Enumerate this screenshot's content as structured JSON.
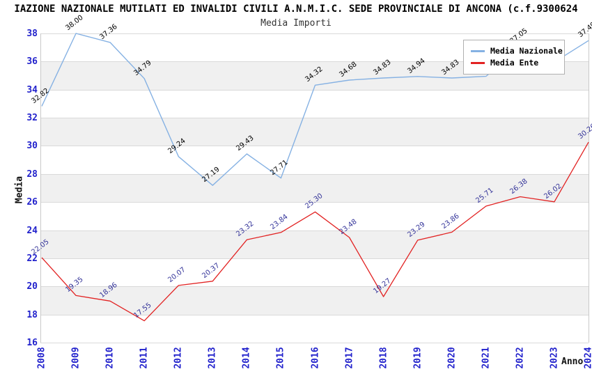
{
  "chart_data": {
    "type": "line",
    "title": "IAZIONE NAZIONALE MUTILATI ED INVALIDI CIVILI A.N.M.I.C. SEDE PROVINCIALE DI ANCONA (c.f.9300624",
    "subtitle": "Media Importi",
    "xlabel": "Anno",
    "ylabel": "Media",
    "x": [
      "2008",
      "2009",
      "2010",
      "2011",
      "2012",
      "2013",
      "2014",
      "2015",
      "2016",
      "2017",
      "2018",
      "2019",
      "2020",
      "2021",
      "2022",
      "2023",
      "2024"
    ],
    "ylim": [
      16,
      38
    ],
    "ytick_step": 2,
    "grid": "alternating horizontal gray bands every 2 units",
    "legend_position": "top-right",
    "series": [
      {
        "name": "Media Nazionale",
        "color": "#85b1e3",
        "label_color": "#000000",
        "values": [
          32.82,
          38.0,
          37.36,
          34.79,
          29.24,
          27.19,
          29.43,
          27.71,
          34.32,
          34.68,
          34.83,
          34.94,
          34.83,
          34.95,
          37.05,
          35.96,
          37.49
        ],
        "note": "2021 and 2023 point labels are partially hidden behind the legend box"
      },
      {
        "name": "Media Ente",
        "color": "#e22222",
        "label_color": "#333399",
        "values": [
          22.05,
          19.35,
          18.96,
          17.55,
          20.07,
          20.37,
          23.32,
          23.84,
          25.3,
          23.48,
          19.27,
          23.29,
          23.86,
          25.71,
          26.38,
          26.02,
          30.26
        ]
      }
    ],
    "axis_text_color": "#2222cc",
    "band_color": "#f0f0f0"
  }
}
